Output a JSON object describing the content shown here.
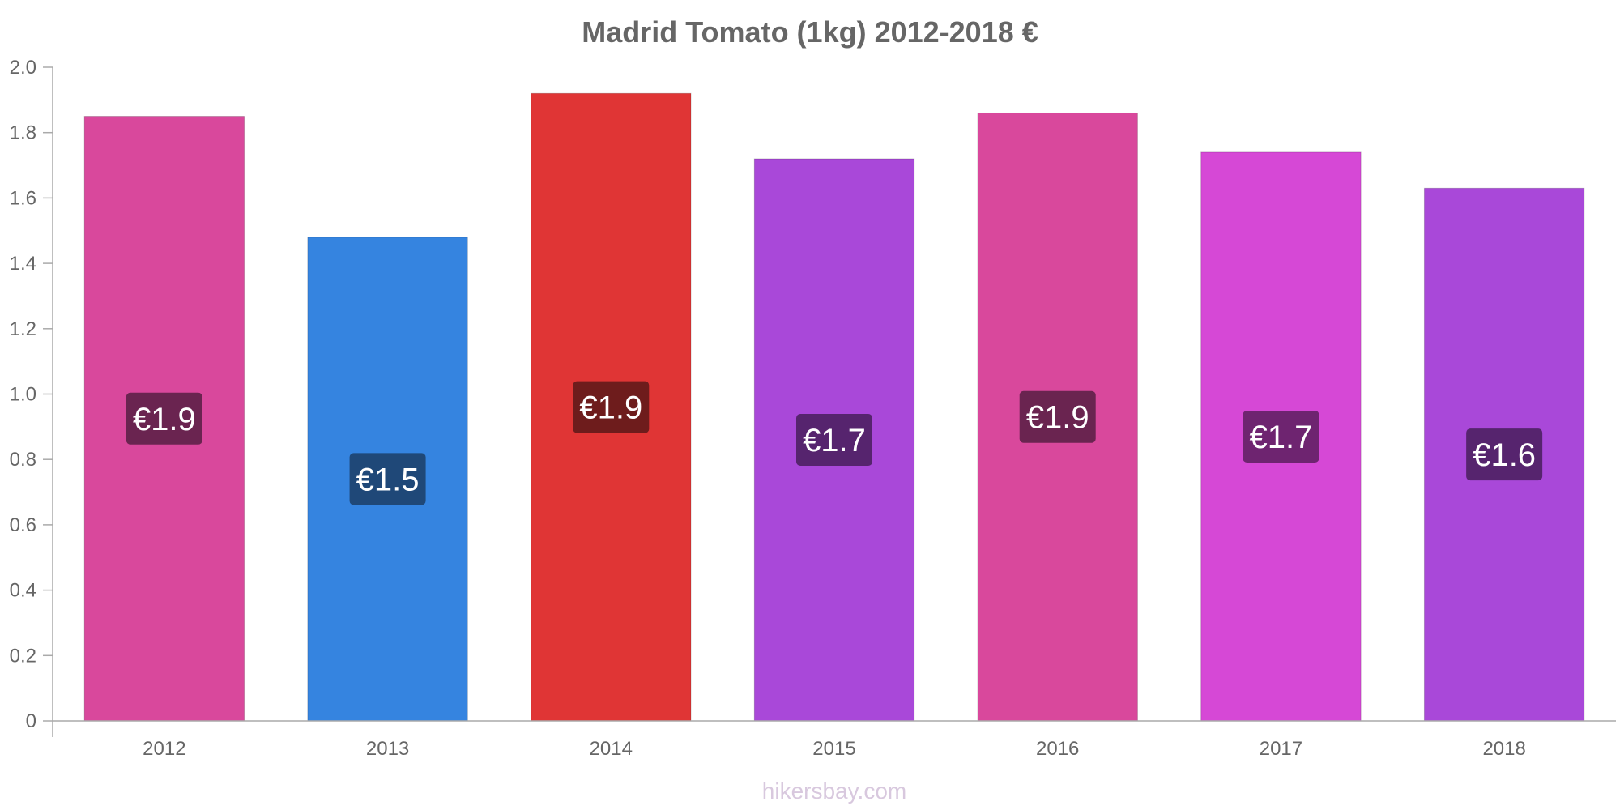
{
  "chart_data": {
    "type": "bar",
    "title": "Madrid Tomato (1kg) 2012-2018 €",
    "categories": [
      "2012",
      "2013",
      "2014",
      "2015",
      "2016",
      "2017",
      "2018"
    ],
    "values": [
      1.85,
      1.48,
      1.92,
      1.72,
      1.86,
      1.74,
      1.63
    ],
    "value_labels": [
      "€1.9",
      "€1.5",
      "€1.9",
      "€1.7",
      "€1.9",
      "€1.7",
      "€1.6"
    ],
    "bar_colors": [
      "#d9489c",
      "#3584e0",
      "#e03535",
      "#a948d9",
      "#d9489c",
      "#d648d6",
      "#a948d9"
    ],
    "label_bg_colors": [
      "#6a2450",
      "#1f4878",
      "#6e1c1c",
      "#56246e",
      "#6a2450",
      "#6e2470",
      "#56246e"
    ],
    "ylim": [
      0,
      2.0
    ],
    "yticks": [
      "0",
      "0.2",
      "0.4",
      "0.6",
      "0.8",
      "1.0",
      "1.2",
      "1.4",
      "1.6",
      "1.8",
      "2.0"
    ],
    "xlabel": "",
    "ylabel": "",
    "grid": false,
    "legend": "none"
  },
  "watermark": "hikersbay.com"
}
